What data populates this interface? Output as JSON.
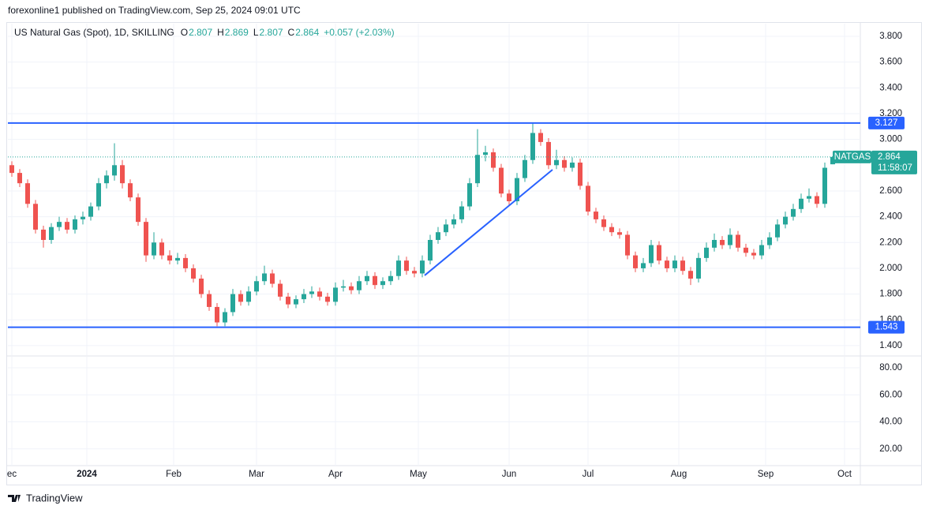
{
  "header": {
    "publisher": "forexonline1 published on TradingView.com, Sep 25, 2024 09:01 UTC"
  },
  "footer": {
    "brand": "TradingView"
  },
  "chart_data": {
    "type": "candlestick",
    "title": "US Natural Gas (Spot), 1D, SKILLING",
    "legend_labels": [
      "O",
      "H",
      "L",
      "C"
    ],
    "change_label": "+0.057 (+2.03%)",
    "symbol": "NATGAS",
    "countdown": "11:58:07",
    "up_color": "#26a69a",
    "down_color": "#ef5350",
    "level_color": "#2962ff",
    "grid": true,
    "xlim": [
      0,
      216
    ],
    "xticks": [
      {
        "value": 1,
        "label": "ec"
      },
      {
        "value": 20,
        "label": "2024"
      },
      {
        "value": 42,
        "label": "Feb"
      },
      {
        "value": 63,
        "label": "Mar"
      },
      {
        "value": 83,
        "label": "Apr"
      },
      {
        "value": 104,
        "label": "May"
      },
      {
        "value": 127,
        "label": "Jun"
      },
      {
        "value": 147,
        "label": "Jul"
      },
      {
        "value": 170,
        "label": "Aug"
      },
      {
        "value": 192,
        "label": "Sep"
      },
      {
        "value": 212,
        "label": "Oct"
      }
    ],
    "ylim": [
      1.326,
      3.898
    ],
    "yticks": [
      {
        "value": 3.8,
        "label": "3.800"
      },
      {
        "value": 3.6,
        "label": "3.600"
      },
      {
        "value": 3.4,
        "label": "3.400"
      },
      {
        "value": 3.2,
        "label": "3.200"
      },
      {
        "value": 3.0,
        "label": "3.000"
      },
      {
        "value": 2.6,
        "label": "2.600"
      },
      {
        "value": 2.4,
        "label": "2.400"
      },
      {
        "value": 2.2,
        "label": "2.200"
      },
      {
        "value": 2.0,
        "label": "2.000"
      },
      {
        "value": 1.8,
        "label": "1.800"
      },
      {
        "value": 1.6,
        "label": "1.600"
      },
      {
        "value": 1.4,
        "label": "1.400"
      }
    ],
    "y2lim": [
      7.6,
      88.2
    ],
    "y2ticks": [
      {
        "value": 80,
        "label": "80.00"
      },
      {
        "value": 60,
        "label": "60.00"
      },
      {
        "value": 40,
        "label": "40.00"
      },
      {
        "value": 20,
        "label": "20.00"
      }
    ],
    "levels": [
      3.127,
      1.543
    ],
    "trendline": {
      "x": [
        105.6,
        138
      ],
      "y": [
        1.945,
        2.765
      ]
    },
    "x": [
      1,
      3,
      5,
      7,
      9,
      11,
      13,
      15,
      17,
      19,
      21,
      23,
      25,
      27,
      29,
      31,
      33,
      35,
      37,
      39,
      41,
      43,
      45,
      47,
      49,
      51,
      53,
      55,
      57,
      59,
      61,
      63,
      65,
      67,
      69,
      71,
      73,
      75,
      77,
      79,
      81,
      83,
      85,
      87,
      89,
      91,
      93,
      95,
      97,
      99,
      101,
      103,
      105,
      107,
      109,
      111,
      113,
      115,
      117,
      119,
      121,
      123,
      125,
      127,
      129,
      131,
      133,
      135,
      137,
      139,
      141,
      143,
      145,
      147,
      149,
      151,
      153,
      155,
      157,
      159,
      161,
      163,
      165,
      167,
      169,
      171,
      173,
      175,
      177,
      179,
      181,
      183,
      185,
      187,
      189,
      191,
      193,
      195,
      197,
      199,
      201,
      203,
      205,
      207,
      209
    ],
    "ohlc": [
      [
        2.8,
        2.83,
        2.71,
        2.74
      ],
      [
        2.74,
        2.77,
        2.63,
        2.66
      ],
      [
        2.66,
        2.69,
        2.47,
        2.5
      ],
      [
        2.5,
        2.53,
        2.27,
        2.3
      ],
      [
        2.3,
        2.33,
        2.16,
        2.22
      ],
      [
        2.22,
        2.35,
        2.19,
        2.32
      ],
      [
        2.32,
        2.4,
        2.29,
        2.36
      ],
      [
        2.36,
        2.39,
        2.27,
        2.3
      ],
      [
        2.3,
        2.41,
        2.27,
        2.38
      ],
      [
        2.38,
        2.44,
        2.34,
        2.4
      ],
      [
        2.4,
        2.51,
        2.37,
        2.48
      ],
      [
        2.48,
        2.7,
        2.45,
        2.66
      ],
      [
        2.66,
        2.76,
        2.62,
        2.72
      ],
      [
        2.72,
        2.97,
        2.68,
        2.8
      ],
      [
        2.8,
        2.84,
        2.62,
        2.66
      ],
      [
        2.66,
        2.69,
        2.52,
        2.55
      ],
      [
        2.55,
        2.58,
        2.33,
        2.36
      ],
      [
        2.36,
        2.39,
        2.05,
        2.1
      ],
      [
        2.1,
        2.28,
        2.07,
        2.2
      ],
      [
        2.2,
        2.23,
        2.07,
        2.1
      ],
      [
        2.1,
        2.14,
        2.03,
        2.06
      ],
      [
        2.06,
        2.12,
        2.03,
        2.08
      ],
      [
        2.08,
        2.11,
        1.97,
        2.0
      ],
      [
        2.0,
        2.03,
        1.89,
        1.92
      ],
      [
        1.92,
        1.95,
        1.77,
        1.8
      ],
      [
        1.8,
        1.83,
        1.67,
        1.7
      ],
      [
        1.7,
        1.73,
        1.55,
        1.58
      ],
      [
        1.58,
        1.69,
        1.55,
        1.66
      ],
      [
        1.66,
        1.84,
        1.63,
        1.8
      ],
      [
        1.8,
        1.83,
        1.71,
        1.74
      ],
      [
        1.74,
        1.86,
        1.71,
        1.82
      ],
      [
        1.82,
        1.94,
        1.79,
        1.9
      ],
      [
        1.9,
        2.02,
        1.87,
        1.96
      ],
      [
        1.96,
        1.99,
        1.85,
        1.88
      ],
      [
        1.88,
        1.91,
        1.75,
        1.78
      ],
      [
        1.78,
        1.81,
        1.69,
        1.72
      ],
      [
        1.72,
        1.79,
        1.69,
        1.76
      ],
      [
        1.76,
        1.84,
        1.73,
        1.8
      ],
      [
        1.8,
        1.86,
        1.77,
        1.82
      ],
      [
        1.82,
        1.85,
        1.75,
        1.78
      ],
      [
        1.78,
        1.81,
        1.71,
        1.74
      ],
      [
        1.74,
        1.89,
        1.71,
        1.85
      ],
      [
        1.85,
        1.91,
        1.82,
        1.86
      ],
      [
        1.86,
        1.89,
        1.8,
        1.83
      ],
      [
        1.83,
        1.94,
        1.8,
        1.9
      ],
      [
        1.9,
        1.98,
        1.87,
        1.94
      ],
      [
        1.94,
        1.97,
        1.84,
        1.87
      ],
      [
        1.87,
        1.93,
        1.84,
        1.9
      ],
      [
        1.9,
        1.98,
        1.87,
        1.94
      ],
      [
        1.94,
        2.1,
        1.91,
        2.06
      ],
      [
        2.06,
        2.09,
        1.95,
        1.98
      ],
      [
        1.98,
        2.01,
        1.93,
        1.96
      ],
      [
        1.96,
        2.1,
        1.93,
        2.06
      ],
      [
        2.06,
        2.26,
        2.03,
        2.22
      ],
      [
        2.22,
        2.32,
        2.19,
        2.28
      ],
      [
        2.28,
        2.38,
        2.25,
        2.34
      ],
      [
        2.34,
        2.42,
        2.31,
        2.38
      ],
      [
        2.38,
        2.52,
        2.35,
        2.48
      ],
      [
        2.48,
        2.7,
        2.45,
        2.66
      ],
      [
        2.66,
        3.08,
        2.63,
        2.88
      ],
      [
        2.88,
        2.95,
        2.83,
        2.9
      ],
      [
        2.9,
        2.93,
        2.75,
        2.78
      ],
      [
        2.78,
        2.81,
        2.55,
        2.58
      ],
      [
        2.58,
        2.61,
        2.48,
        2.52
      ],
      [
        2.52,
        2.74,
        2.49,
        2.7
      ],
      [
        2.7,
        2.88,
        2.67,
        2.84
      ],
      [
        2.84,
        3.13,
        2.81,
        3.05
      ],
      [
        3.05,
        3.08,
        2.95,
        2.98
      ],
      [
        2.98,
        3.01,
        2.77,
        2.8
      ],
      [
        2.8,
        2.92,
        2.77,
        2.84
      ],
      [
        2.84,
        2.87,
        2.75,
        2.78
      ],
      [
        2.78,
        2.86,
        2.75,
        2.82
      ],
      [
        2.82,
        2.85,
        2.61,
        2.64
      ],
      [
        2.64,
        2.67,
        2.41,
        2.44
      ],
      [
        2.44,
        2.47,
        2.35,
        2.38
      ],
      [
        2.38,
        2.41,
        2.29,
        2.32
      ],
      [
        2.32,
        2.35,
        2.25,
        2.28
      ],
      [
        2.28,
        2.31,
        2.23,
        2.26
      ],
      [
        2.26,
        2.29,
        2.07,
        2.1
      ],
      [
        2.1,
        2.13,
        1.97,
        2.0
      ],
      [
        2.0,
        2.08,
        1.97,
        2.04
      ],
      [
        2.04,
        2.22,
        2.01,
        2.18
      ],
      [
        2.18,
        2.21,
        2.03,
        2.06
      ],
      [
        2.06,
        2.09,
        1.97,
        2.0
      ],
      [
        2.0,
        2.1,
        1.97,
        2.06
      ],
      [
        2.06,
        2.09,
        1.95,
        1.98
      ],
      [
        1.98,
        2.01,
        1.87,
        1.92
      ],
      [
        1.92,
        2.12,
        1.89,
        2.08
      ],
      [
        2.08,
        2.2,
        2.05,
        2.16
      ],
      [
        2.16,
        2.27,
        2.13,
        2.22
      ],
      [
        2.22,
        2.25,
        2.15,
        2.18
      ],
      [
        2.18,
        2.31,
        2.15,
        2.26
      ],
      [
        2.26,
        2.29,
        2.13,
        2.16
      ],
      [
        2.16,
        2.19,
        2.09,
        2.12
      ],
      [
        2.12,
        2.15,
        2.07,
        2.1
      ],
      [
        2.1,
        2.22,
        2.07,
        2.18
      ],
      [
        2.18,
        2.28,
        2.15,
        2.24
      ],
      [
        2.24,
        2.38,
        2.21,
        2.34
      ],
      [
        2.34,
        2.44,
        2.31,
        2.4
      ],
      [
        2.4,
        2.5,
        2.37,
        2.46
      ],
      [
        2.46,
        2.58,
        2.43,
        2.54
      ],
      [
        2.54,
        2.62,
        2.51,
        2.56
      ],
      [
        2.56,
        2.59,
        2.47,
        2.5
      ],
      [
        2.5,
        2.82,
        2.47,
        2.78
      ],
      [
        2.807,
        2.869,
        2.807,
        2.864
      ]
    ]
  }
}
